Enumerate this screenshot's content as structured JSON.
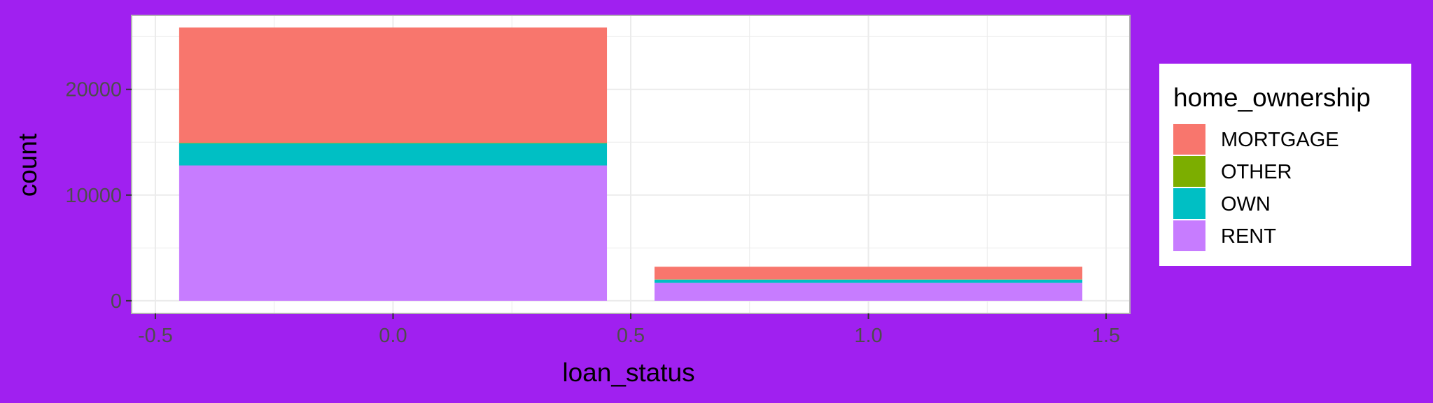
{
  "chart_data": {
    "type": "bar",
    "stacked": true,
    "xlabel": "loan_status",
    "ylabel": "count",
    "xlim": [
      -0.55,
      1.55
    ],
    "ylim": [
      -1200,
      27000
    ],
    "x_ticks": [
      -0.5,
      0.0,
      0.5,
      1.0,
      1.5
    ],
    "x_tick_labels": [
      "-0.5",
      "0.0",
      "0.5",
      "1.0",
      "1.5"
    ],
    "y_ticks": [
      0,
      10000,
      20000
    ],
    "y_tick_labels": [
      "0",
      "10000",
      "20000"
    ],
    "grid": true,
    "bar_width": 0.9,
    "categories": [
      0,
      1
    ],
    "series": [
      {
        "name": "MORTGAGE",
        "color": "#F8766D",
        "values": [
          10900,
          1200
        ]
      },
      {
        "name": "OTHER",
        "color": "#7CAE00",
        "values": [
          50,
          20
        ]
      },
      {
        "name": "OWN",
        "color": "#00BFC4",
        "values": [
          2100,
          300
        ]
      },
      {
        "name": "RENT",
        "color": "#C77CFF",
        "values": [
          12800,
          1700
        ]
      }
    ],
    "legend": {
      "title": "home_ownership",
      "position": "right",
      "entries": [
        "MORTGAGE",
        "OTHER",
        "OWN",
        "RENT"
      ]
    }
  },
  "colors": {
    "background": "#a020f0",
    "panel": "#ffffff",
    "grid": "#ebebeb",
    "panel_border": "#b3b3b3"
  }
}
